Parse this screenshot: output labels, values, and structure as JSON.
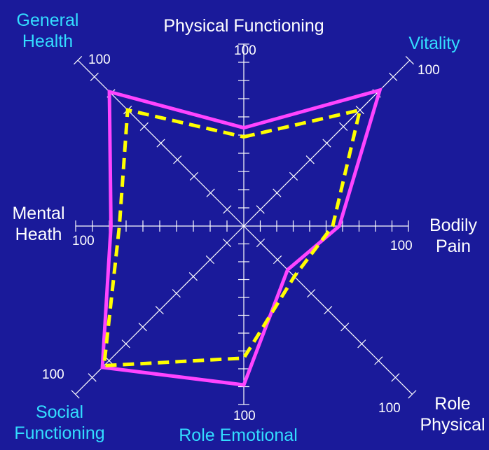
{
  "chart_data": {
    "type": "radar",
    "max": 100,
    "axes": [
      {
        "id": "physical-functioning",
        "lines": [
          "Physical Functioning"
        ],
        "color": "#ffffff",
        "tick_label": "100"
      },
      {
        "id": "vitality",
        "lines": [
          "Vitality"
        ],
        "color": "#33ddff",
        "tick_label": "100"
      },
      {
        "id": "bodily-pain",
        "lines": [
          "Bodily",
          "Pain"
        ],
        "color": "#ffffff",
        "tick_label": "100"
      },
      {
        "id": "role-physical",
        "lines": [
          "Role",
          "Physical"
        ],
        "color": "#ffffff",
        "tick_label": "100"
      },
      {
        "id": "role-emotional",
        "lines": [
          "Role Emotional"
        ],
        "color": "#33ddff",
        "tick_label": "100"
      },
      {
        "id": "social-functioning",
        "lines": [
          "Social",
          "Functioning"
        ],
        "color": "#33ddff",
        "tick_label": "100"
      },
      {
        "id": "mental-heath",
        "lines": [
          "Mental",
          "Heath"
        ],
        "color": "#ffffff",
        "tick_label": "100"
      },
      {
        "id": "general-health",
        "lines": [
          "General",
          "Health"
        ],
        "color": "#33ddff",
        "tick_label": "100"
      }
    ],
    "series": [
      {
        "style": "solid",
        "color": "#ff44ff",
        "values": [
          54,
          82,
          58,
          26,
          89,
          84,
          79,
          81
        ]
      },
      {
        "style": "dashed",
        "color": "#ffff00",
        "values": [
          49,
          70,
          54,
          30,
          74,
          83,
          74,
          70
        ]
      }
    ],
    "grid_ticks_per_axis": 10
  }
}
